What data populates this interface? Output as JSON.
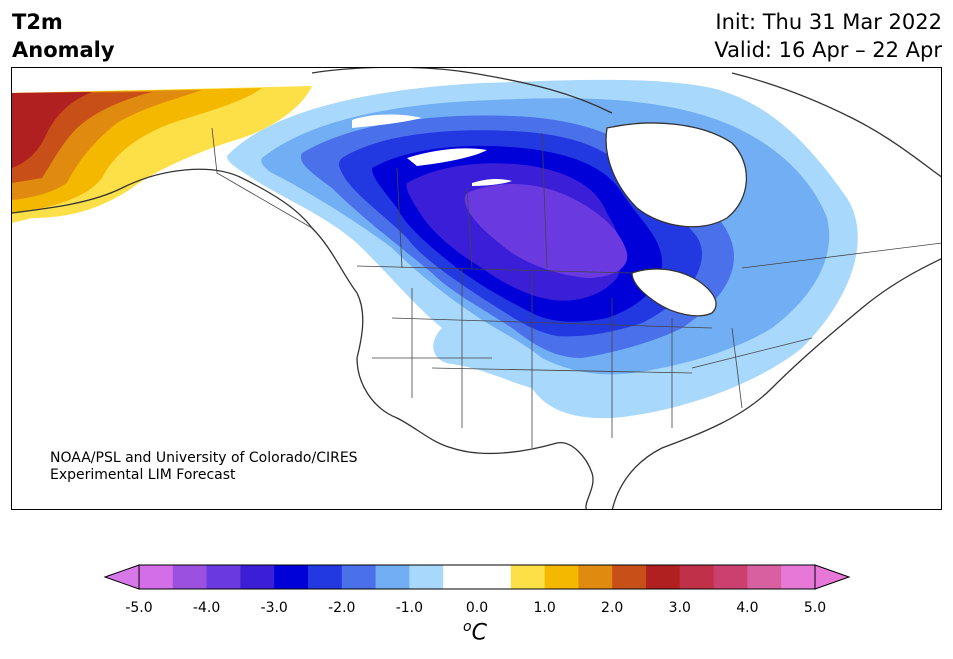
{
  "header": {
    "title_line1": "T2m",
    "title_line2": "Anomaly",
    "init_label": "Init: Thu 31 Mar 2022",
    "valid_label": "Valid: 16 Apr – 22 Apr"
  },
  "credit": {
    "line1": "NOAA/PSL and University of Colorado/CIRES",
    "line2": "Experimental LIM Forecast"
  },
  "colorbar": {
    "unit_base": "C",
    "unit_sup": "o",
    "ticks": [
      "-5.0",
      "-4.0",
      "-3.0",
      "-2.0",
      "-1.0",
      "0.0",
      "1.0",
      "2.0",
      "3.0",
      "4.0",
      "5.0"
    ],
    "colors": [
      "#d46ee8",
      "#9b50e0",
      "#6a3ae0",
      "#3a1ed8",
      "#0000d8",
      "#2238e0",
      "#4a70ea",
      "#72aef4",
      "#a8d8fc",
      "#ffffff",
      "#ffffff",
      "#fde048",
      "#f4b800",
      "#e08a10",
      "#c85018",
      "#b02020",
      "#c03048",
      "#cc4070",
      "#d860a0",
      "#e878d8"
    ],
    "under_color": "#d878e8",
    "over_color": "#e878d8"
  },
  "colors": {
    "purple": "#6a3ae0",
    "indigo": "#3a1ed8",
    "blue": "#0000d8",
    "mid_blue": "#2238e0",
    "blue2": "#4a70ea",
    "light_blue": "#72aef4",
    "pale_blue": "#a8d8fc",
    "yellow": "#fde048",
    "orange1": "#f4b800",
    "orange2": "#e08a10",
    "orange3": "#c85018",
    "red": "#b02020",
    "coast": "#333333"
  }
}
